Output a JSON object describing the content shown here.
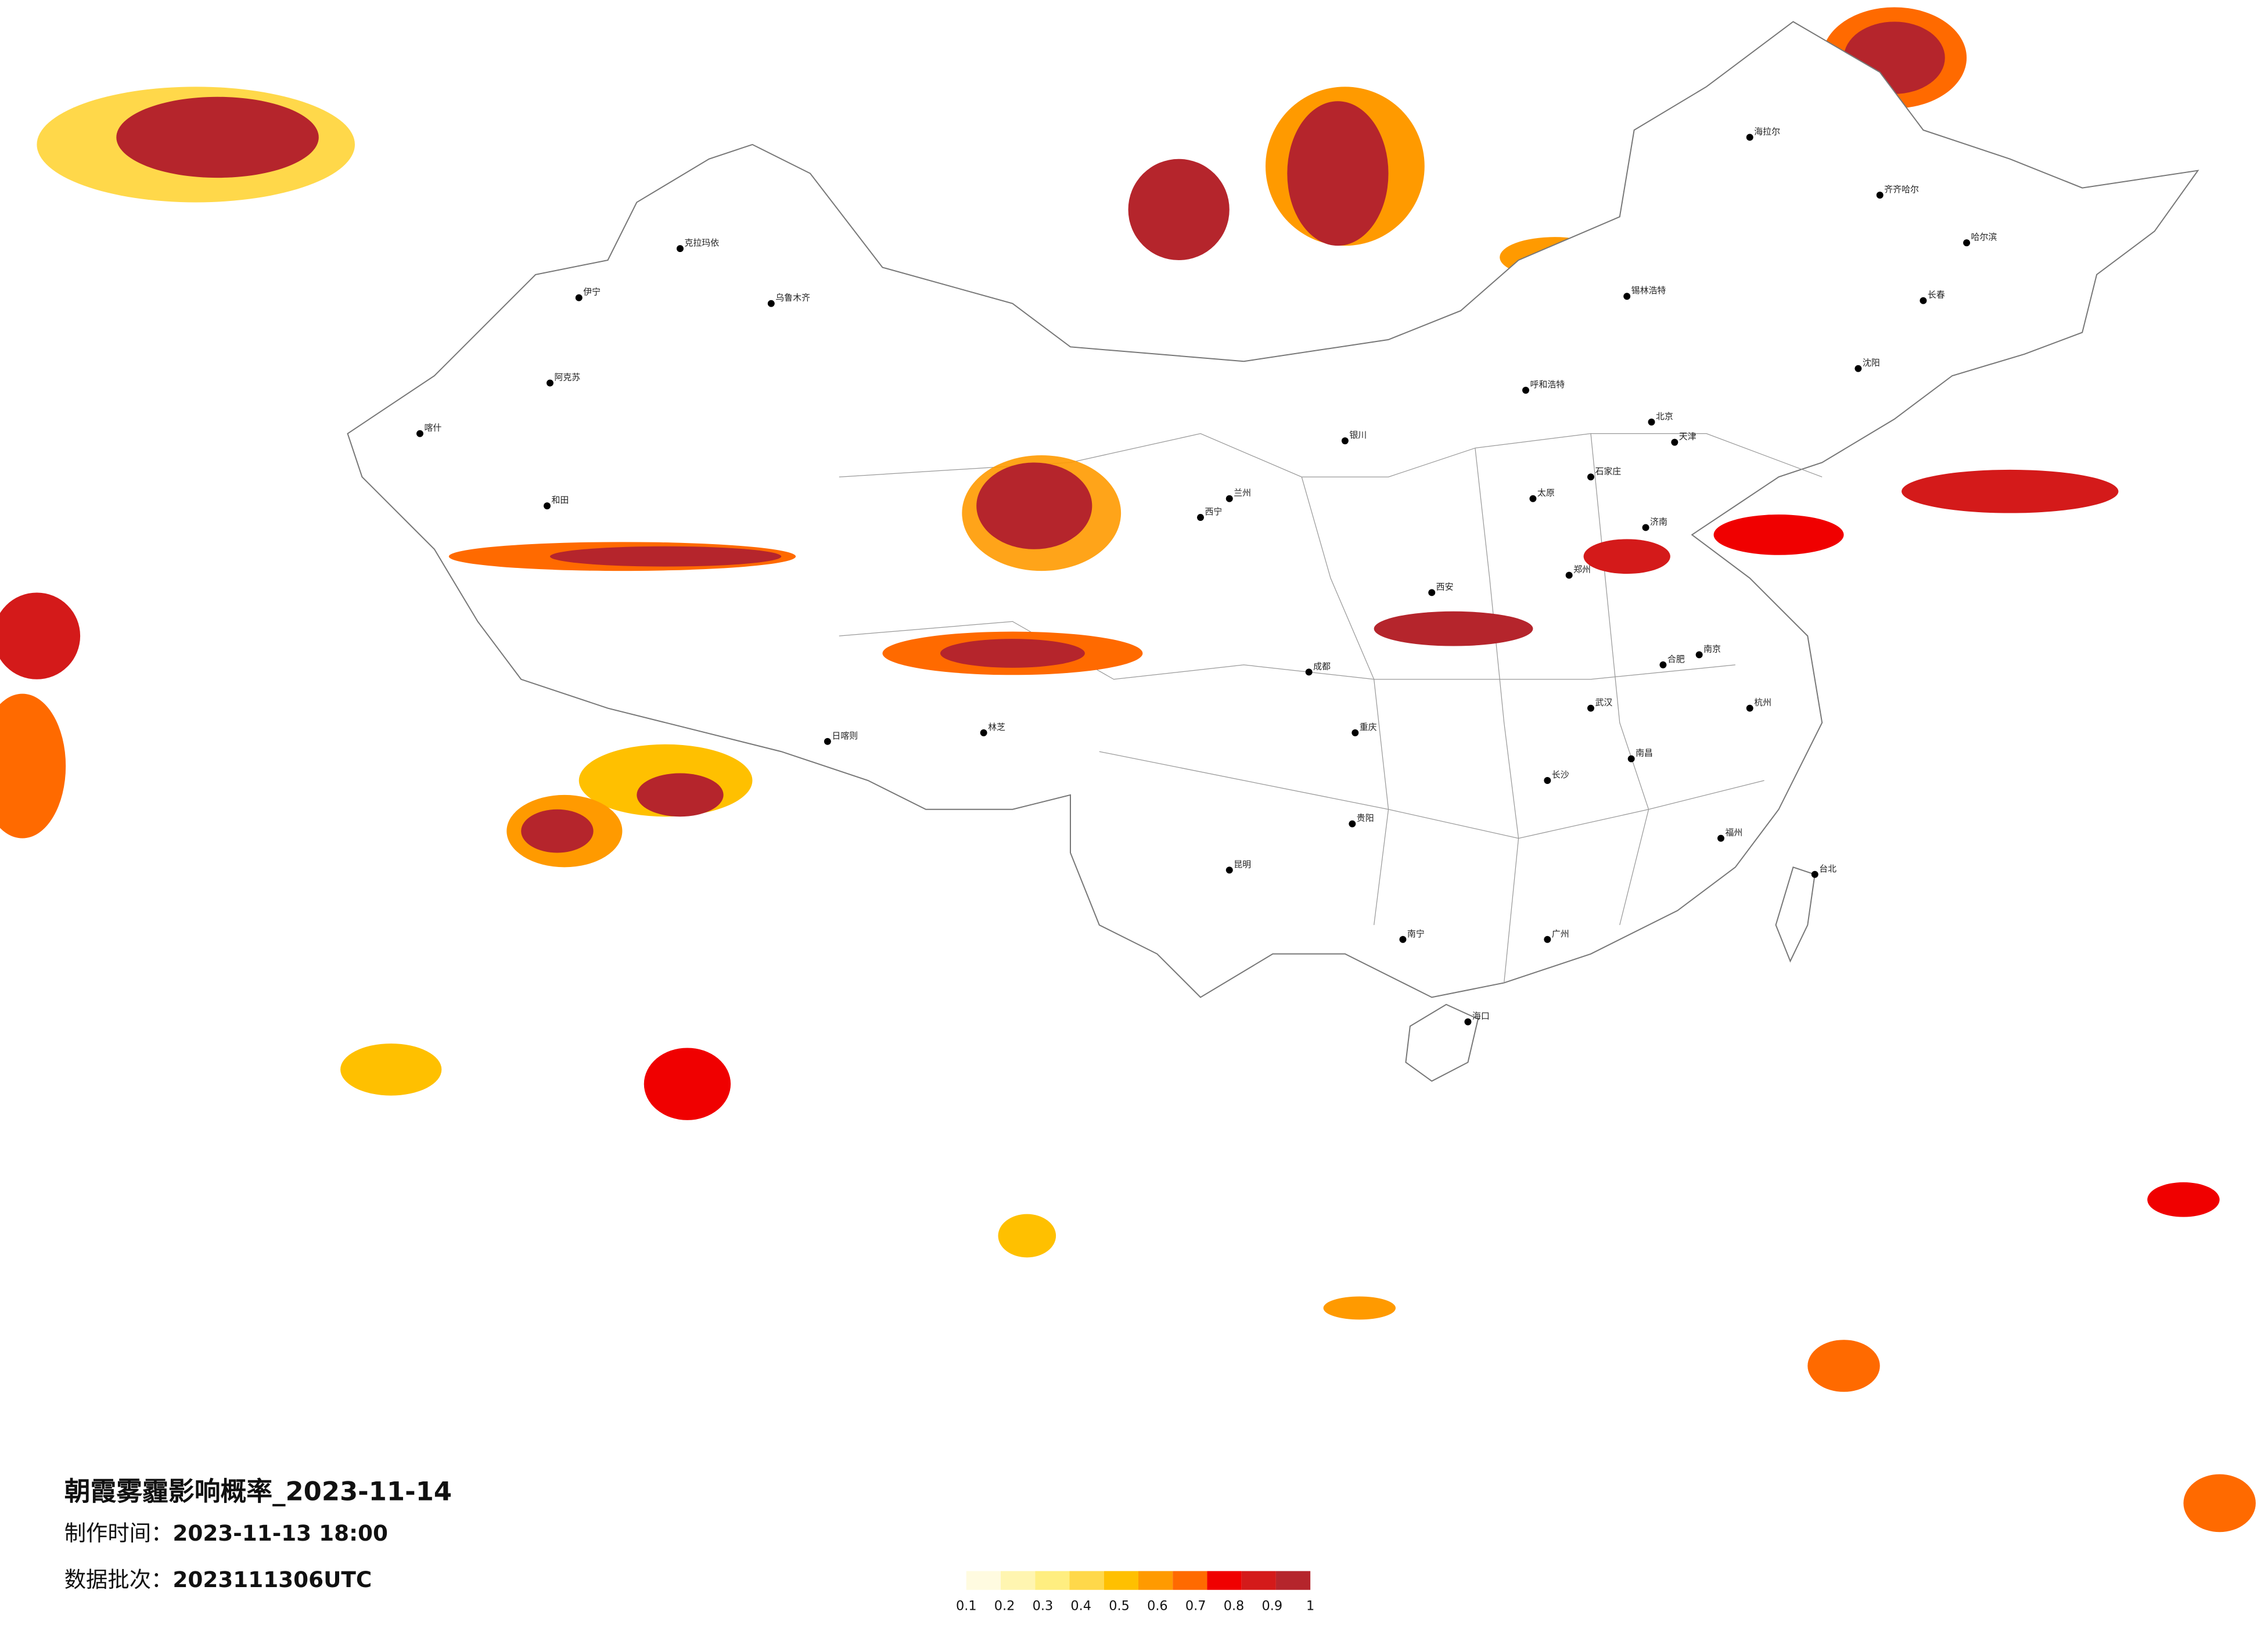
{
  "header": {
    "title": "朝霞雾霾影响概率_2023-11-14",
    "made_label": "制作时间：",
    "made_time": "2023-11-13 18:00",
    "batch_label": "数据批次：",
    "batch": "2023111306UTC"
  },
  "legend": {
    "labels": [
      0.1,
      0.2,
      0.3,
      0.4,
      0.5,
      0.6,
      0.7,
      0.8,
      0.9,
      1
    ],
    "colors": [
      "#fffbe0",
      "#fff5b0",
      "#ffee80",
      "#ffd84a",
      "#ffc000",
      "#ff9a00",
      "#ff6a00",
      "#f00000",
      "#d41a1a",
      "#b5252c"
    ]
  },
  "cities": [
    {
      "name": "北京"
    },
    {
      "name": "天津"
    },
    {
      "name": "石家庄"
    },
    {
      "name": "太原"
    },
    {
      "name": "呼和浩特"
    },
    {
      "name": "济南"
    },
    {
      "name": "郑州"
    },
    {
      "name": "西安"
    },
    {
      "name": "银川"
    },
    {
      "name": "兰州"
    },
    {
      "name": "西宁"
    },
    {
      "name": "乌鲁木齐"
    },
    {
      "name": "喀什"
    },
    {
      "name": "和田"
    },
    {
      "name": "日喀则"
    },
    {
      "name": "林芝"
    },
    {
      "name": "成都"
    },
    {
      "name": "重庆"
    },
    {
      "name": "贵阳"
    },
    {
      "name": "昆明"
    },
    {
      "name": "南宁"
    },
    {
      "name": "海口"
    },
    {
      "name": "长沙"
    },
    {
      "name": "武汉"
    },
    {
      "name": "南昌"
    },
    {
      "name": "合肥"
    },
    {
      "name": "南京"
    },
    {
      "name": "杭州"
    },
    {
      "name": "福州"
    },
    {
      "name": "台北"
    },
    {
      "name": "广州"
    },
    {
      "name": "沈阳"
    },
    {
      "name": "长春"
    },
    {
      "name": "哈尔滨"
    },
    {
      "name": "齐齐哈尔"
    },
    {
      "name": "海拉尔"
    },
    {
      "name": "锡林浩特"
    },
    {
      "name": "克拉玛依"
    },
    {
      "name": "伊宁"
    },
    {
      "name": "阿克苏"
    }
  ]
}
